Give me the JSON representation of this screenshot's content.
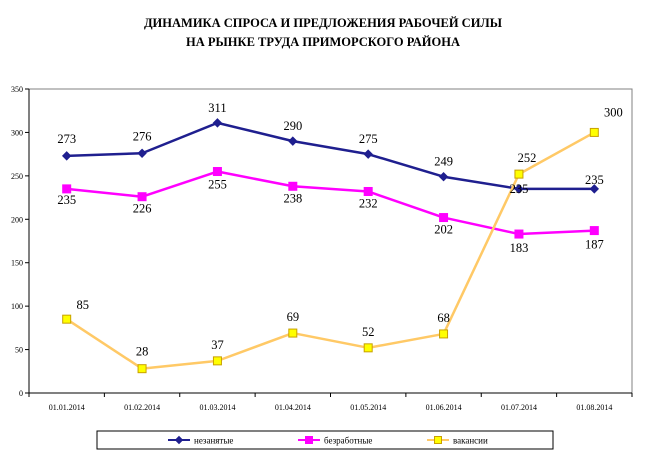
{
  "chart_data": {
    "type": "line",
    "title_lines": [
      "ДИНАМИКА СПРОСА И ПРЕДЛОЖЕНИЯ РАБОЧЕЙ СИЛЫ",
      "НА РЫНКЕ ТРУДА ПРИМОРСКОГО РАЙОНА"
    ],
    "categories": [
      "01.01.2014",
      "01.02.2014",
      "01.03.2014",
      "01.04.2014",
      "01.05.2014",
      "01.06.2014",
      "01.07.2014",
      "01.08.2014"
    ],
    "ylim": [
      0,
      350
    ],
    "yticks": [
      0,
      50,
      100,
      150,
      200,
      250,
      300,
      350
    ],
    "grid": false,
    "legend_position": "bottom",
    "series": [
      {
        "name": "незанятые",
        "values": [
          273,
          276,
          311,
          290,
          275,
          249,
          235,
          235
        ],
        "color": "#1F1F8F",
        "marker": "diamond"
      },
      {
        "name": "безработные",
        "values": [
          235,
          226,
          255,
          238,
          232,
          202,
          183,
          187
        ],
        "color": "#FF00FF",
        "marker": "square"
      },
      {
        "name": "вакансии",
        "values": [
          85,
          28,
          37,
          69,
          52,
          68,
          252,
          300
        ],
        "color": "#FFC966",
        "marker": "square",
        "marker_fill": "#FFFF00",
        "marker_stroke": "#C8A000"
      }
    ]
  }
}
